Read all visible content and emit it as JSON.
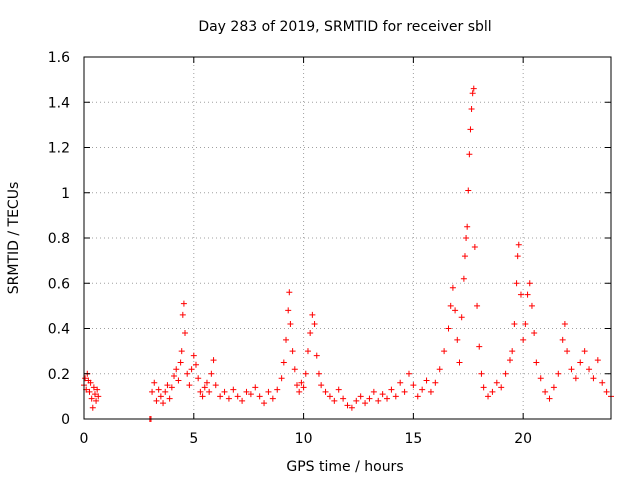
{
  "chart_data": {
    "type": "scatter",
    "title": "Day 283 of 2019, SRMTID for receiver sbll",
    "xlabel": "GPS time / hours",
    "ylabel": "SRMTID / TECUs",
    "xlim": [
      0,
      24
    ],
    "ylim": [
      0,
      1.6
    ],
    "x_ticks": [
      0,
      5,
      10,
      15,
      20
    ],
    "x_tick_labels": [
      "0",
      "5",
      "10",
      "15",
      "20"
    ],
    "y_ticks": [
      0,
      0.2,
      0.4,
      0.6,
      0.8,
      1,
      1.2,
      1.4,
      1.6
    ],
    "y_tick_labels": [
      "0",
      "0.2",
      "0.4",
      "0.6",
      "0.8",
      "1",
      "1.2",
      "1.4",
      "1.6"
    ],
    "grid": true,
    "marker": "+",
    "color": "#ff0000",
    "series": [
      {
        "name": "SRMTID",
        "points": [
          [
            0.0,
            0.15
          ],
          [
            0.05,
            0.18
          ],
          [
            0.1,
            0.13
          ],
          [
            0.15,
            0.2
          ],
          [
            0.2,
            0.17
          ],
          [
            0.25,
            0.12
          ],
          [
            0.3,
            0.16
          ],
          [
            0.35,
            0.09
          ],
          [
            0.4,
            0.05
          ],
          [
            0.45,
            0.14
          ],
          [
            0.5,
            0.11
          ],
          [
            0.55,
            0.08
          ],
          [
            0.6,
            0.13
          ],
          [
            0.65,
            0.1
          ],
          [
            3.0,
            0.0
          ],
          [
            3.05,
            0.0
          ],
          [
            3.1,
            0.12
          ],
          [
            3.2,
            0.16
          ],
          [
            3.3,
            0.08
          ],
          [
            3.4,
            0.13
          ],
          [
            3.5,
            0.1
          ],
          [
            3.6,
            0.07
          ],
          [
            3.7,
            0.12
          ],
          [
            3.8,
            0.15
          ],
          [
            3.9,
            0.09
          ],
          [
            4.0,
            0.14
          ],
          [
            4.1,
            0.19
          ],
          [
            4.2,
            0.22
          ],
          [
            4.3,
            0.17
          ],
          [
            4.4,
            0.25
          ],
          [
            4.45,
            0.3
          ],
          [
            4.5,
            0.46
          ],
          [
            4.55,
            0.51
          ],
          [
            4.6,
            0.38
          ],
          [
            4.7,
            0.2
          ],
          [
            4.8,
            0.15
          ],
          [
            4.9,
            0.22
          ],
          [
            5.0,
            0.28
          ],
          [
            5.1,
            0.24
          ],
          [
            5.2,
            0.18
          ],
          [
            5.3,
            0.12
          ],
          [
            5.4,
            0.1
          ],
          [
            5.5,
            0.14
          ],
          [
            5.6,
            0.16
          ],
          [
            5.7,
            0.12
          ],
          [
            5.8,
            0.2
          ],
          [
            5.9,
            0.26
          ],
          [
            6.0,
            0.15
          ],
          [
            6.2,
            0.1
          ],
          [
            6.4,
            0.12
          ],
          [
            6.6,
            0.09
          ],
          [
            6.8,
            0.13
          ],
          [
            7.0,
            0.1
          ],
          [
            7.2,
            0.08
          ],
          [
            7.4,
            0.12
          ],
          [
            7.6,
            0.11
          ],
          [
            7.8,
            0.14
          ],
          [
            8.0,
            0.1
          ],
          [
            8.2,
            0.07
          ],
          [
            8.4,
            0.12
          ],
          [
            8.6,
            0.09
          ],
          [
            8.8,
            0.13
          ],
          [
            9.0,
            0.18
          ],
          [
            9.1,
            0.25
          ],
          [
            9.2,
            0.35
          ],
          [
            9.3,
            0.48
          ],
          [
            9.35,
            0.56
          ],
          [
            9.4,
            0.42
          ],
          [
            9.5,
            0.3
          ],
          [
            9.6,
            0.22
          ],
          [
            9.7,
            0.15
          ],
          [
            9.8,
            0.12
          ],
          [
            9.9,
            0.16
          ],
          [
            10.0,
            0.14
          ],
          [
            10.1,
            0.2
          ],
          [
            10.2,
            0.3
          ],
          [
            10.3,
            0.38
          ],
          [
            10.4,
            0.46
          ],
          [
            10.5,
            0.42
          ],
          [
            10.6,
            0.28
          ],
          [
            10.7,
            0.2
          ],
          [
            10.8,
            0.15
          ],
          [
            11.0,
            0.12
          ],
          [
            11.2,
            0.1
          ],
          [
            11.4,
            0.08
          ],
          [
            11.6,
            0.13
          ],
          [
            11.8,
            0.09
          ],
          [
            12.0,
            0.06
          ],
          [
            12.2,
            0.05
          ],
          [
            12.4,
            0.08
          ],
          [
            12.6,
            0.1
          ],
          [
            12.8,
            0.07
          ],
          [
            13.0,
            0.09
          ],
          [
            13.2,
            0.12
          ],
          [
            13.4,
            0.08
          ],
          [
            13.6,
            0.11
          ],
          [
            13.8,
            0.09
          ],
          [
            14.0,
            0.13
          ],
          [
            14.2,
            0.1
          ],
          [
            14.4,
            0.16
          ],
          [
            14.6,
            0.12
          ],
          [
            14.8,
            0.2
          ],
          [
            15.0,
            0.15
          ],
          [
            15.2,
            0.1
          ],
          [
            15.4,
            0.13
          ],
          [
            15.6,
            0.17
          ],
          [
            15.8,
            0.12
          ],
          [
            16.0,
            0.16
          ],
          [
            16.2,
            0.22
          ],
          [
            16.4,
            0.3
          ],
          [
            16.6,
            0.4
          ],
          [
            16.7,
            0.5
          ],
          [
            16.8,
            0.58
          ],
          [
            16.9,
            0.48
          ],
          [
            17.0,
            0.35
          ],
          [
            17.1,
            0.25
          ],
          [
            17.2,
            0.45
          ],
          [
            17.3,
            0.62
          ],
          [
            17.35,
            0.72
          ],
          [
            17.4,
            0.8
          ],
          [
            17.45,
            0.85
          ],
          [
            17.5,
            1.01
          ],
          [
            17.55,
            1.17
          ],
          [
            17.6,
            1.28
          ],
          [
            17.65,
            1.37
          ],
          [
            17.7,
            1.44
          ],
          [
            17.75,
            1.46
          ],
          [
            17.8,
            0.76
          ],
          [
            17.9,
            0.5
          ],
          [
            18.0,
            0.32
          ],
          [
            18.1,
            0.2
          ],
          [
            18.2,
            0.14
          ],
          [
            18.4,
            0.1
          ],
          [
            18.6,
            0.12
          ],
          [
            18.8,
            0.16
          ],
          [
            19.0,
            0.14
          ],
          [
            19.2,
            0.2
          ],
          [
            19.4,
            0.26
          ],
          [
            19.5,
            0.3
          ],
          [
            19.6,
            0.42
          ],
          [
            19.7,
            0.6
          ],
          [
            19.75,
            0.72
          ],
          [
            19.8,
            0.77
          ],
          [
            19.9,
            0.55
          ],
          [
            20.0,
            0.35
          ],
          [
            20.1,
            0.42
          ],
          [
            20.2,
            0.55
          ],
          [
            20.3,
            0.6
          ],
          [
            20.4,
            0.5
          ],
          [
            20.5,
            0.38
          ],
          [
            20.6,
            0.25
          ],
          [
            20.8,
            0.18
          ],
          [
            21.0,
            0.12
          ],
          [
            21.2,
            0.09
          ],
          [
            21.4,
            0.14
          ],
          [
            21.6,
            0.2
          ],
          [
            21.8,
            0.35
          ],
          [
            21.9,
            0.42
          ],
          [
            22.0,
            0.3
          ],
          [
            22.2,
            0.22
          ],
          [
            22.4,
            0.18
          ],
          [
            22.6,
            0.25
          ],
          [
            22.8,
            0.3
          ],
          [
            23.0,
            0.22
          ],
          [
            23.2,
            0.18
          ],
          [
            23.4,
            0.26
          ],
          [
            23.6,
            0.16
          ],
          [
            23.8,
            0.12
          ],
          [
            24.0,
            0.1
          ]
        ]
      }
    ]
  }
}
